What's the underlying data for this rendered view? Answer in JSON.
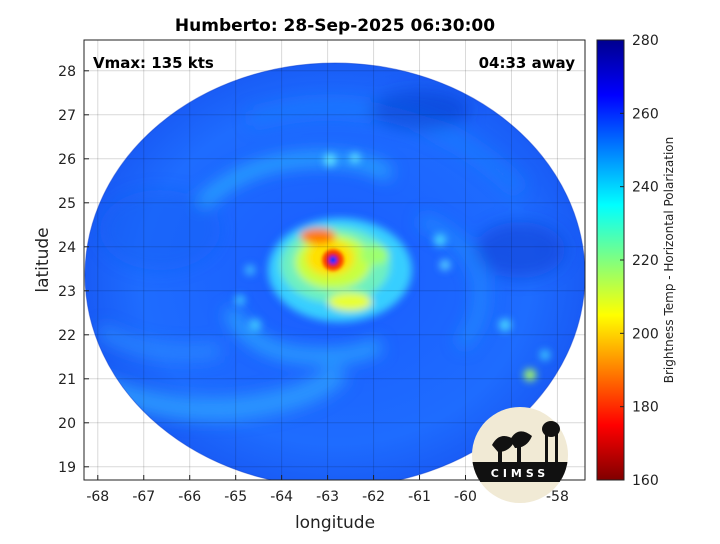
{
  "chart_data": {
    "type": "heatmap",
    "title": "Humberto: 28-Sep-2025 06:30:00",
    "xlabel": "longitude",
    "ylabel": "latitude",
    "xlim": [
      -68.3,
      -57.4
    ],
    "ylim": [
      18.7,
      28.7
    ],
    "xticks": [
      -68,
      -67,
      -66,
      -65,
      -64,
      -63,
      -62,
      -61,
      -60,
      -59,
      -58
    ],
    "yticks": [
      19,
      20,
      21,
      22,
      23,
      24,
      25,
      26,
      27,
      28
    ],
    "grid": true,
    "annotations": {
      "left": "Vmax: 135 kts",
      "right": "04:33 away"
    },
    "storm_center": {
      "lon": -62.85,
      "lat": 23.7
    },
    "field": "Brightness Temp - Horizontal Polarization",
    "colorbar": {
      "label": "Brightness Temp - Horizontal Polarization",
      "range": [
        160,
        280
      ],
      "ticks": [
        160,
        180,
        200,
        220,
        240,
        260,
        280
      ],
      "colormap": [
        "#800000",
        "#ff0000",
        "#ff8000",
        "#ffff00",
        "#80ff80",
        "#00ffff",
        "#0080ff",
        "#0000ff",
        "#00008f"
      ]
    },
    "logo": "CIMSS"
  }
}
